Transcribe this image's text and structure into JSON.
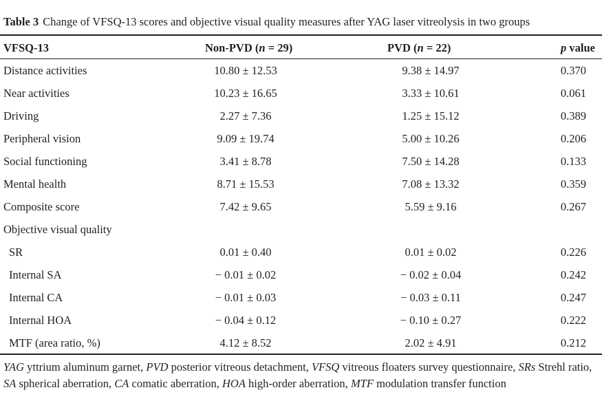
{
  "caption": {
    "label": "Table 3",
    "text": "Change of VFSQ-13 scores and objective visual quality measures after YAG laser vitreolysis in two groups"
  },
  "header": {
    "col0": "VFSQ-13",
    "col1": "Non-PVD (",
    "col1_n": "n",
    "col1_tail": " = 29)",
    "col2": "PVD (",
    "col2_n": "n",
    "col2_tail": " = 22)",
    "col3_p": "p",
    "col3_tail": " value"
  },
  "rows": [
    {
      "label": "Distance activities",
      "nonpvd": "10.80 ± 12.53",
      "pvd": "9.38 ± 14.97",
      "p": "0.370"
    },
    {
      "label": "Near activities",
      "nonpvd": "10.23 ± 16.65",
      "pvd": "3.33 ± 10.61",
      "p": "0.061"
    },
    {
      "label": "Driving",
      "nonpvd": "2.27 ± 7.36",
      "pvd": "1.25 ± 15.12",
      "p": "0.389"
    },
    {
      "label": "Peripheral vision",
      "nonpvd": "9.09 ± 19.74",
      "pvd": "5.00 ± 10.26",
      "p": "0.206"
    },
    {
      "label": "Social functioning",
      "nonpvd": "3.41 ± 8.78",
      "pvd": "7.50 ± 14.28",
      "p": "0.133"
    },
    {
      "label": "Mental health",
      "nonpvd": "8.71 ± 15.53",
      "pvd": "7.08 ± 13.32",
      "p": "0.359"
    },
    {
      "label": "Composite score",
      "nonpvd": "7.42 ± 9.65",
      "pvd": "5.59 ± 9.16",
      "p": "0.267"
    },
    {
      "label": "Objective visual quality",
      "nonpvd": "",
      "pvd": "",
      "p": ""
    },
    {
      "label": "SR",
      "nonpvd": "0.01 ± 0.40",
      "pvd": "0.01 ± 0.02",
      "p": "0.226"
    },
    {
      "label": "Internal SA",
      "nonpvd": "− 0.01 ± 0.02",
      "pvd": "− 0.02 ± 0.04",
      "p": "0.242"
    },
    {
      "label": "Internal CA",
      "nonpvd": "− 0.01 ± 0.03",
      "pvd": "− 0.03 ± 0.11",
      "p": "0.247"
    },
    {
      "label": "Internal HOA",
      "nonpvd": "− 0.04 ± 0.12",
      "pvd": "− 0.10 ± 0.27",
      "p": "0.222"
    },
    {
      "label": "MTF (area ratio, %)",
      "nonpvd": "4.12 ± 8.52",
      "pvd": "2.02 ± 4.91",
      "p": "0.212"
    }
  ],
  "footnote": [
    {
      "abbr": "YAG",
      "def": " yttrium aluminum garnet, "
    },
    {
      "abbr": "PVD",
      "def": " posterior vitreous detachment, "
    },
    {
      "abbr": "VFSQ",
      "def": " vitreous floaters survey questionnaire, "
    },
    {
      "abbr": "SRs",
      "def": " Strehl ratio, "
    },
    {
      "abbr": "SA",
      "def": " spherical aberration, "
    },
    {
      "abbr": "CA",
      "def": " comatic aberration, "
    },
    {
      "abbr": "HOA",
      "def": " high-order aberration, "
    },
    {
      "abbr": "MTF",
      "def": " modulation transfer function"
    }
  ]
}
